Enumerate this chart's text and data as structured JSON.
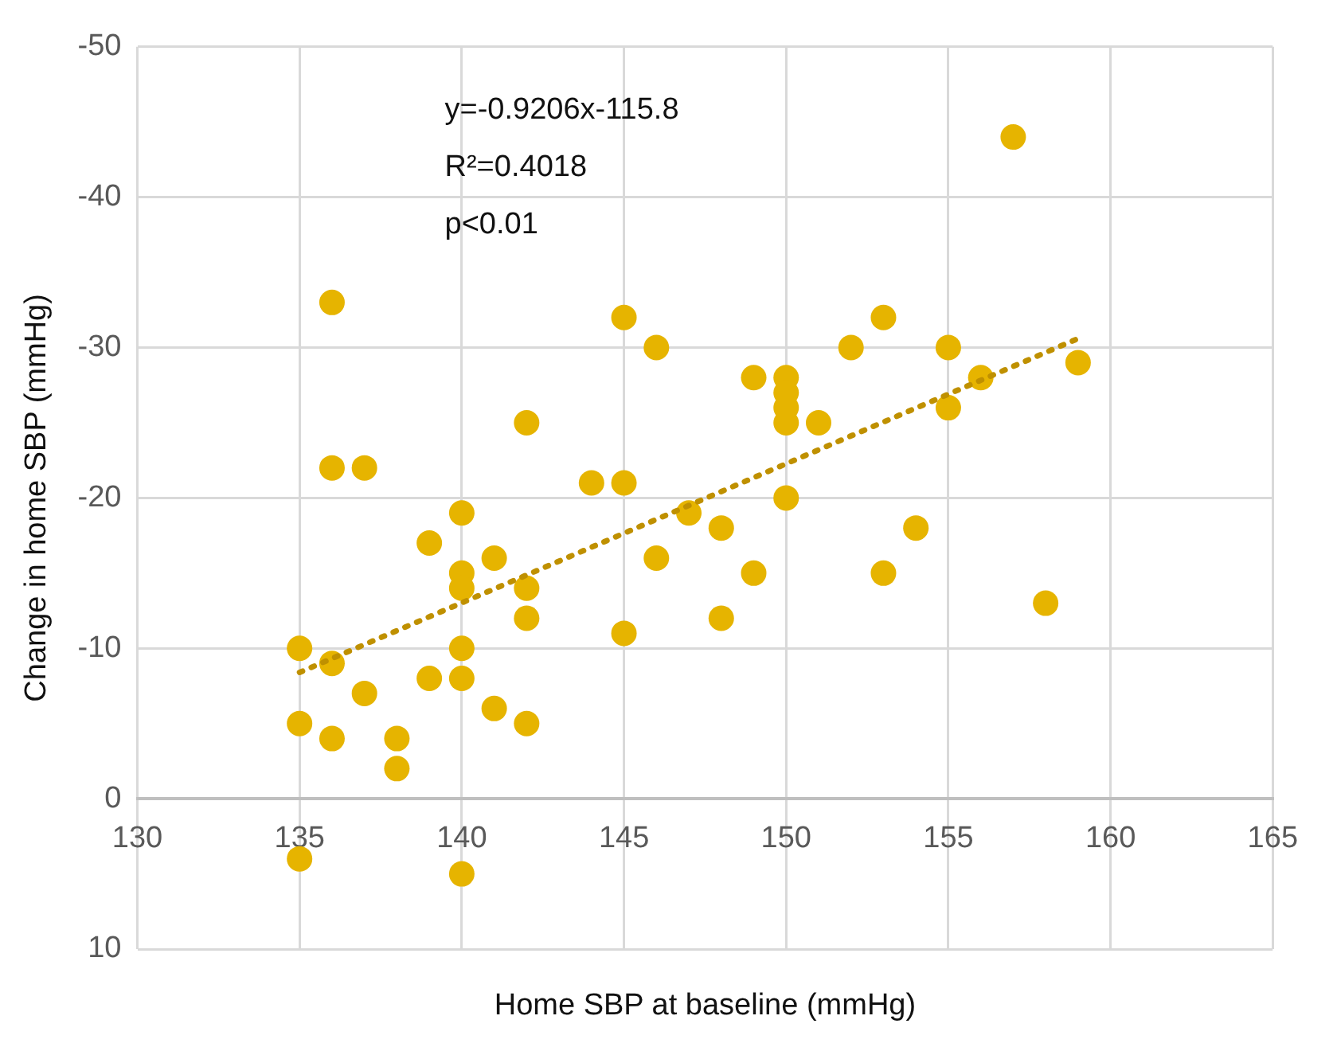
{
  "chart_data": {
    "type": "scatter",
    "xlabel": "Home SBP at baseline (mmHg)",
    "ylabel": "Change in home SBP (mmHg)",
    "annotations": [
      "y=-0.9206x-115.8",
      "R²=0.4018",
      "p<0.01"
    ],
    "xlim": [
      130,
      165
    ],
    "xticks": [
      130,
      135,
      140,
      145,
      150,
      155,
      160,
      165
    ],
    "ylim": [
      10,
      -50
    ],
    "yticks": [
      -50,
      -40,
      -30,
      -20,
      -10,
      0,
      10
    ],
    "grid": true,
    "legend": false,
    "marker": "circle",
    "series": [
      {
        "color": "#e6b400",
        "x": [
          136,
          157,
          145,
          146,
          153,
          152,
          155,
          149,
          150,
          150,
          150,
          150,
          151,
          156,
          159,
          155,
          136,
          137,
          142,
          144,
          145,
          150,
          140,
          147,
          148,
          154,
          139,
          141,
          146,
          140,
          149,
          153,
          140,
          142,
          158,
          142,
          148,
          145,
          135,
          140,
          136,
          139,
          140,
          137,
          141,
          135,
          142,
          136,
          138,
          138,
          135,
          140
        ],
        "values": [
          -33,
          -44,
          -32,
          -30,
          -32,
          -30,
          -30,
          -28,
          -28,
          -27,
          -26,
          -25,
          -25,
          -28,
          -29,
          -26,
          -22,
          -22,
          -25,
          -21,
          -21,
          -20,
          -19,
          -19,
          -18,
          -18,
          -17,
          -16,
          -16,
          -15,
          -15,
          -15,
          -14,
          -14,
          -13,
          -12,
          -12,
          -11,
          -10,
          -10,
          -9,
          -8,
          -8,
          -7,
          -6,
          -5,
          -5,
          -4,
          -4,
          -2,
          4,
          5
        ]
      },
      {
        "type": "line",
        "color": "#bf9000",
        "line_style": "dotted",
        "marker": "none",
        "x": [
          135,
          159
        ],
        "values": [
          -8.4,
          -30.6
        ]
      }
    ]
  }
}
